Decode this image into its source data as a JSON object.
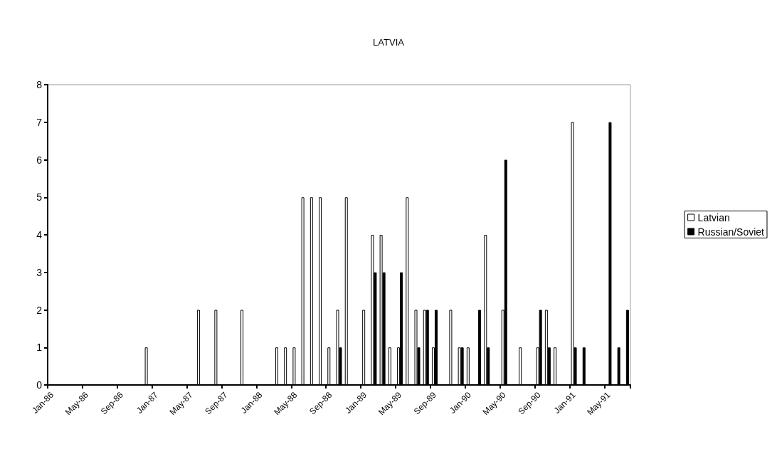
{
  "chart_data": {
    "type": "bar",
    "title": "LATVIA",
    "categories": [
      "Jan-86",
      null,
      null,
      null,
      "May-86",
      null,
      null,
      null,
      "Sep-86",
      null,
      null,
      null,
      "Jan-87",
      null,
      null,
      null,
      "May-87",
      null,
      null,
      null,
      "Sep-87",
      null,
      null,
      null,
      "Jan-88",
      null,
      null,
      null,
      "May-88",
      null,
      null,
      null,
      "Sep-88",
      null,
      null,
      null,
      "Jan-89",
      null,
      null,
      null,
      "May-89",
      null,
      null,
      null,
      "Sep-89",
      null,
      null,
      null,
      "Jan-90",
      null,
      null,
      null,
      "May-90",
      null,
      null,
      null,
      "Sep-90",
      null,
      null,
      null,
      "Jan-91",
      null,
      null,
      null,
      "May-91",
      null,
      null
    ],
    "series": [
      {
        "name": "Latvian",
        "color": "#ffffff",
        "values": [
          null,
          null,
          null,
          null,
          null,
          null,
          null,
          null,
          null,
          null,
          null,
          1,
          null,
          null,
          null,
          null,
          null,
          2,
          null,
          2,
          null,
          null,
          2,
          null,
          null,
          null,
          1,
          1,
          1,
          5,
          5,
          5,
          1,
          2,
          5,
          null,
          2,
          4,
          4,
          1,
          1,
          5,
          2,
          2,
          1,
          null,
          2,
          1,
          1,
          null,
          4,
          null,
          2,
          null,
          1,
          null,
          1,
          2,
          1,
          null,
          7,
          null,
          null,
          null,
          null,
          null,
          null
        ]
      },
      {
        "name": "Russian/Soviet",
        "color": "#000000",
        "values": [
          null,
          null,
          null,
          null,
          null,
          null,
          null,
          null,
          null,
          null,
          null,
          null,
          null,
          null,
          null,
          null,
          null,
          null,
          null,
          null,
          null,
          null,
          null,
          null,
          null,
          null,
          null,
          null,
          null,
          null,
          null,
          null,
          null,
          1,
          null,
          null,
          null,
          3,
          3,
          null,
          3,
          null,
          1,
          2,
          2,
          null,
          null,
          1,
          null,
          2,
          1,
          null,
          6,
          null,
          null,
          null,
          2,
          1,
          null,
          null,
          1,
          1,
          null,
          null,
          7,
          1,
          2
        ]
      }
    ],
    "ylim": [
      0,
      8
    ],
    "yticks": [
      0,
      1,
      2,
      3,
      4,
      5,
      6,
      7,
      8
    ],
    "grid": false,
    "legend": "right"
  }
}
